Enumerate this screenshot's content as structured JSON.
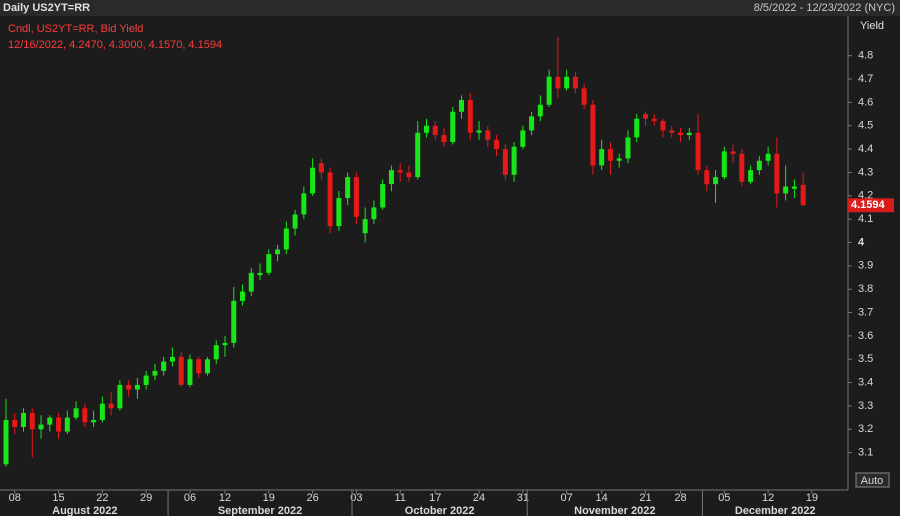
{
  "chart_data": {
    "type": "candlestick",
    "title": "Daily US2YT=RR",
    "date_range": "8/5/2022 - 12/23/2022 (NYC)",
    "legend_lines": [
      "Cndl, US2YT=RR, Bid Yield",
      "12/16/2022, 4.2470, 4.3000, 4.1570, 4.1594"
    ],
    "y_axis_label": "Yield",
    "button_label": "Auto",
    "last_value_label": "4.1594",
    "up_color": "#19e619",
    "down_color": "#e61919",
    "ylim": [
      2.94,
      4.97
    ],
    "yticks": [
      3.1,
      3.2,
      3.3,
      3.4,
      3.5,
      3.6,
      3.7,
      3.8,
      3.9,
      4,
      4.1,
      4.2,
      4.3,
      4.4,
      4.5,
      4.6,
      4.7,
      4.8
    ],
    "x": [
      "2022-08-05",
      "2022-08-08",
      "2022-08-09",
      "2022-08-10",
      "2022-08-11",
      "2022-08-12",
      "2022-08-15",
      "2022-08-16",
      "2022-08-17",
      "2022-08-18",
      "2022-08-19",
      "2022-08-22",
      "2022-08-23",
      "2022-08-24",
      "2022-08-25",
      "2022-08-26",
      "2022-08-29",
      "2022-08-30",
      "2022-08-31",
      "2022-09-01",
      "2022-09-02",
      "2022-09-06",
      "2022-09-07",
      "2022-09-08",
      "2022-09-09",
      "2022-09-12",
      "2022-09-13",
      "2022-09-14",
      "2022-09-15",
      "2022-09-16",
      "2022-09-19",
      "2022-09-20",
      "2022-09-21",
      "2022-09-22",
      "2022-09-23",
      "2022-09-26",
      "2022-09-27",
      "2022-09-28",
      "2022-09-29",
      "2022-09-30",
      "2022-10-03",
      "2022-10-04",
      "2022-10-05",
      "2022-10-06",
      "2022-10-07",
      "2022-10-11",
      "2022-10-12",
      "2022-10-13",
      "2022-10-14",
      "2022-10-17",
      "2022-10-18",
      "2022-10-19",
      "2022-10-20",
      "2022-10-21",
      "2022-10-24",
      "2022-10-25",
      "2022-10-26",
      "2022-10-27",
      "2022-10-28",
      "2022-10-31",
      "2022-11-01",
      "2022-11-02",
      "2022-11-03",
      "2022-11-04",
      "2022-11-07",
      "2022-11-08",
      "2022-11-09",
      "2022-11-10",
      "2022-11-14",
      "2022-11-15",
      "2022-11-16",
      "2022-11-17",
      "2022-11-18",
      "2022-11-21",
      "2022-11-22",
      "2022-11-23",
      "2022-11-25",
      "2022-11-28",
      "2022-11-29",
      "2022-11-30",
      "2022-12-01",
      "2022-12-02",
      "2022-12-05",
      "2022-12-06",
      "2022-12-07",
      "2022-12-08",
      "2022-12-09",
      "2022-12-12",
      "2022-12-13",
      "2022-12-14",
      "2022-12-15",
      "2022-12-16"
    ],
    "open": [
      3.05,
      3.24,
      3.21,
      3.27,
      3.2,
      3.22,
      3.25,
      3.19,
      3.25,
      3.29,
      3.23,
      3.24,
      3.31,
      3.29,
      3.39,
      3.37,
      3.39,
      3.43,
      3.45,
      3.49,
      3.51,
      3.39,
      3.5,
      3.44,
      3.5,
      3.56,
      3.57,
      3.75,
      3.79,
      3.86,
      3.87,
      3.95,
      3.97,
      4.06,
      4.12,
      4.21,
      4.34,
      4.3,
      4.07,
      4.19,
      4.28,
      4.04,
      4.1,
      4.15,
      4.25,
      4.31,
      4.3,
      4.28,
      4.47,
      4.5,
      4.46,
      4.43,
      4.56,
      4.61,
      4.47,
      4.48,
      4.44,
      4.4,
      4.29,
      4.41,
      4.48,
      4.54,
      4.59,
      4.71,
      4.66,
      4.71,
      4.66,
      4.59,
      4.33,
      4.4,
      4.35,
      4.36,
      4.45,
      4.55,
      4.53,
      4.52,
      4.48,
      4.47,
      4.46,
      4.47,
      4.31,
      4.25,
      4.28,
      4.39,
      4.38,
      4.26,
      4.31,
      4.35,
      4.38,
      4.21,
      4.23,
      4.247
    ],
    "high": [
      3.33,
      3.27,
      3.29,
      3.29,
      3.26,
      3.26,
      3.27,
      3.28,
      3.32,
      3.31,
      3.28,
      3.34,
      3.36,
      3.41,
      3.41,
      3.42,
      3.45,
      3.48,
      3.51,
      3.55,
      3.53,
      3.52,
      3.51,
      3.51,
      3.58,
      3.6,
      3.81,
      3.82,
      3.89,
      3.91,
      3.97,
      3.99,
      4.09,
      4.14,
      4.24,
      4.36,
      4.36,
      4.32,
      4.22,
      4.3,
      4.3,
      4.15,
      4.18,
      4.27,
      4.33,
      4.34,
      4.33,
      4.52,
      4.53,
      4.52,
      4.49,
      4.58,
      4.63,
      4.64,
      4.52,
      4.5,
      4.46,
      4.42,
      4.43,
      4.5,
      4.56,
      4.63,
      4.74,
      4.88,
      4.74,
      4.73,
      4.68,
      4.61,
      4.44,
      4.43,
      4.38,
      4.48,
      4.55,
      4.56,
      4.55,
      4.53,
      4.5,
      4.49,
      4.49,
      4.55,
      4.33,
      4.31,
      4.41,
      4.42,
      4.4,
      4.33,
      4.37,
      4.41,
      4.45,
      4.33,
      4.27,
      4.3
    ],
    "low": [
      3.04,
      3.18,
      3.19,
      3.08,
      3.16,
      3.19,
      3.16,
      3.18,
      3.24,
      3.21,
      3.21,
      3.23,
      3.26,
      3.28,
      3.34,
      3.33,
      3.37,
      3.41,
      3.43,
      3.47,
      3.38,
      3.38,
      3.42,
      3.43,
      3.48,
      3.51,
      3.55,
      3.73,
      3.77,
      3.84,
      3.86,
      3.92,
      3.95,
      4.03,
      4.1,
      4.2,
      4.27,
      4.04,
      4.05,
      4.16,
      4.08,
      4.0,
      4.08,
      4.14,
      4.22,
      4.26,
      4.26,
      4.27,
      4.45,
      4.44,
      4.41,
      4.42,
      4.53,
      4.44,
      4.44,
      4.41,
      4.37,
      4.27,
      4.26,
      4.4,
      4.46,
      4.52,
      4.58,
      4.62,
      4.65,
      4.64,
      4.57,
      4.29,
      4.31,
      4.29,
      4.32,
      4.34,
      4.43,
      4.5,
      4.5,
      4.45,
      4.45,
      4.43,
      4.44,
      4.29,
      4.22,
      4.17,
      4.27,
      4.34,
      4.24,
      4.25,
      4.29,
      4.33,
      4.15,
      4.18,
      4.19,
      4.157
    ],
    "close": [
      3.24,
      3.21,
      3.27,
      3.2,
      3.22,
      3.25,
      3.19,
      3.25,
      3.29,
      3.23,
      3.24,
      3.31,
      3.29,
      3.39,
      3.37,
      3.39,
      3.43,
      3.45,
      3.49,
      3.51,
      3.39,
      3.5,
      3.44,
      3.5,
      3.56,
      3.57,
      3.75,
      3.79,
      3.87,
      3.87,
      3.95,
      3.97,
      4.06,
      4.12,
      4.21,
      4.32,
      4.3,
      4.07,
      4.19,
      4.28,
      4.11,
      4.1,
      4.15,
      4.25,
      4.31,
      4.3,
      4.28,
      4.47,
      4.5,
      4.46,
      4.43,
      4.56,
      4.61,
      4.47,
      4.48,
      4.44,
      4.4,
      4.29,
      4.41,
      4.48,
      4.54,
      4.59,
      4.71,
      4.66,
      4.71,
      4.66,
      4.59,
      4.33,
      4.4,
      4.35,
      4.36,
      4.45,
      4.53,
      4.53,
      4.52,
      4.48,
      4.47,
      4.46,
      4.47,
      4.31,
      4.25,
      4.28,
      4.39,
      4.38,
      4.26,
      4.31,
      4.35,
      4.38,
      4.21,
      4.24,
      4.24,
      4.1594
    ],
    "xticks": [
      {
        "value": "2022-08-08",
        "label": "08"
      },
      {
        "value": "2022-08-15",
        "label": "15"
      },
      {
        "value": "2022-08-22",
        "label": "22"
      },
      {
        "value": "2022-08-29",
        "label": "29"
      },
      {
        "value": "2022-09-06",
        "label": "06"
      },
      {
        "value": "2022-09-12",
        "label": "12"
      },
      {
        "value": "2022-09-19",
        "label": "19"
      },
      {
        "value": "2022-09-26",
        "label": "26"
      },
      {
        "value": "2022-10-03",
        "label": "03"
      },
      {
        "value": "2022-10-11",
        "label": "11"
      },
      {
        "value": "2022-10-17",
        "label": "17"
      },
      {
        "value": "2022-10-24",
        "label": "24"
      },
      {
        "value": "2022-10-31",
        "label": "31"
      },
      {
        "value": "2022-11-07",
        "label": "07"
      },
      {
        "value": "2022-11-14",
        "label": "14"
      },
      {
        "value": "2022-11-21",
        "label": "21"
      },
      {
        "value": "2022-11-28",
        "label": "28"
      },
      {
        "value": "2022-12-05",
        "label": "05"
      },
      {
        "value": "2022-12-12",
        "label": "12"
      },
      {
        "value": "2022-12-19",
        "label": "19"
      }
    ],
    "months": [
      {
        "value": "2022-08",
        "label": "August 2022"
      },
      {
        "value": "2022-09",
        "label": "September 2022"
      },
      {
        "value": "2022-10",
        "label": "October 2022"
      },
      {
        "value": "2022-11",
        "label": "November 2022"
      },
      {
        "value": "2022-12",
        "label": "December 2022"
      }
    ]
  }
}
